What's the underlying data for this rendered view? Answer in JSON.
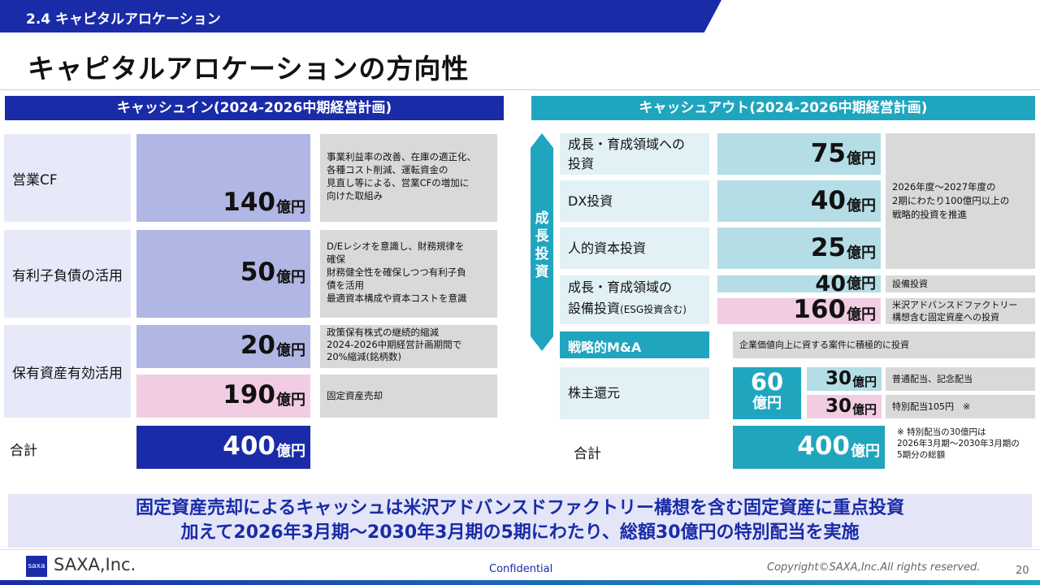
{
  "header": {
    "section": "2.4 キャピタルアロケーション",
    "title": "キャピタルアロケーションの方向性"
  },
  "cash_in": {
    "heading": "キャッシュイン(2024-2026中期経営計画)",
    "unit": "億円",
    "rows": [
      {
        "label": "営業CF",
        "value": "140",
        "note": "事業利益率の改善、在庫の適正化、\n各種コスト削減、運転資金の\n見直し等による、営業CFの増加に\n向けた取組み"
      },
      {
        "label": "有利子負債の活用",
        "value": "50",
        "note": "D/Eレシオを意識し、財務規律を\n確保\n財務健全性を確保しつつ有利子負\n債を活用\n最適資本構成や資本コストを意識"
      },
      {
        "label": "保有資産有効活用",
        "value1": "20",
        "note1": "政策保有株式の継続的縮減\n2024-2026中期経営計画期間で\n20%縮減(銘柄数)",
        "value2": "190",
        "note2": "固定資産売却"
      }
    ],
    "total_label": "合計",
    "total_value": "400"
  },
  "cash_out": {
    "heading": "キャッシュアウト(2024-2026中期経営計画)",
    "unit": "億円",
    "growth_arrow_label": "成長投資",
    "rows": [
      {
        "label": "成長・育成領域への\n投資",
        "value": "75"
      },
      {
        "label": "DX投資",
        "value": "40"
      },
      {
        "label": "人的資本投資",
        "value": "25"
      }
    ],
    "group_note": "2026年度～2027年度の\n2期にわたり100億円以上の\n戦略的投資を推進",
    "facility": {
      "label_line1": "成長・育成領域の",
      "label_line2": "設備投資",
      "label_suffix": "(ESG投資含む)",
      "value1": "40",
      "note1": "設備投資",
      "value2": "160",
      "note2": "米沢アドバンスドファクトリー\n構想含む固定資産への投資"
    },
    "ma": {
      "label": "戦略的M&A",
      "note": "企業価値向上に資する案件に積極的に投資"
    },
    "shareholder": {
      "label": "株主還元",
      "total_value": "60",
      "value1": "30",
      "note1": "普通配当、記念配当",
      "value2": "30",
      "note2": "特別配当105円　※"
    },
    "footnote": "※ 特別配当の30億円は\n2026年3月期～2030年3月期の\n5期分の総額",
    "total_label": "合計",
    "total_value": "400"
  },
  "banner": {
    "line1": "固定資産売却によるキャッシュは米沢アドバンスドファクトリー構想を含む固定資産に重点投資",
    "line2": "加えて2026年3月期～2030年3月期の5期にわたり、総額30億円の特別配当を実施"
  },
  "footer": {
    "logo_mark": "saxa",
    "company": "SAXA,Inc.",
    "confidential": "Confidential",
    "copyright": "Copyright©SAXA,Inc.All rights reserved.",
    "page": "20"
  },
  "colors": {
    "navy": "#1a2ba8",
    "teal": "#20a5bf",
    "light_blue": "#b0b7e4",
    "pink": "#f2cce3",
    "gray": "#d9d9d9"
  }
}
